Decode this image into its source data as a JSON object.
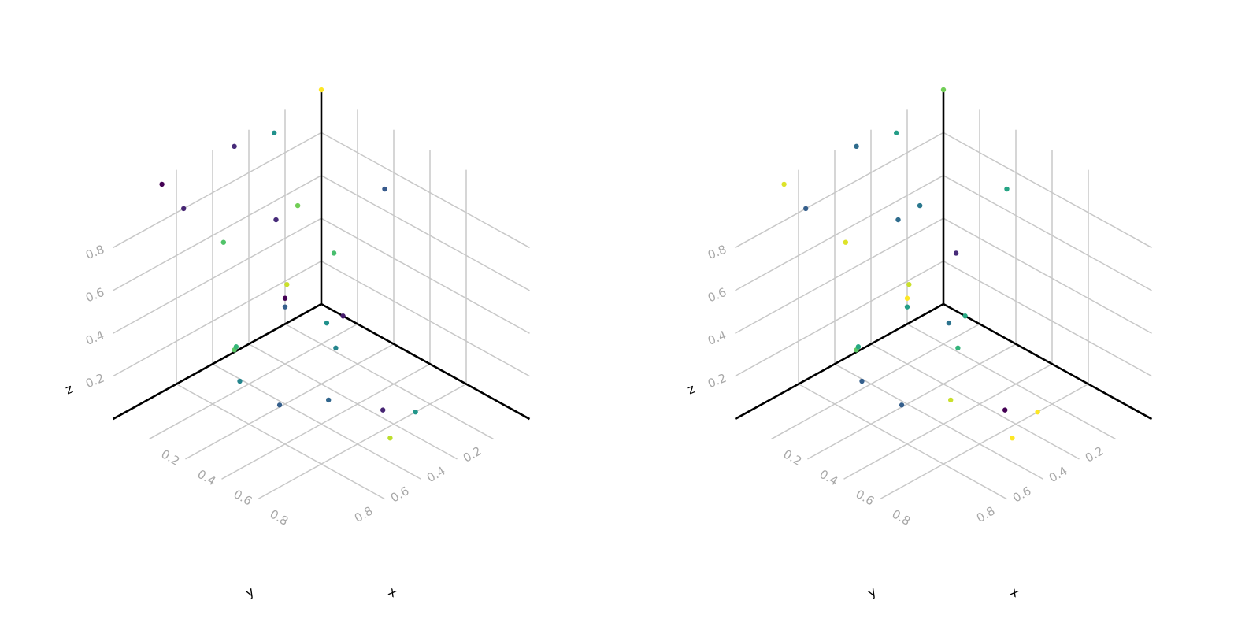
{
  "colormap": [
    "#440154",
    "#472d7b",
    "#3b528b",
    "#2c728e",
    "#21918c",
    "#28ae80",
    "#5ec962",
    "#addc30",
    "#fde725"
  ],
  "chart_data": [
    {
      "type": "scatter3d",
      "axes": {
        "x": {
          "label": "x",
          "ticks": [
            "0.2",
            "0.4",
            "0.6",
            "0.8"
          ],
          "range": [
            0,
            1
          ]
        },
        "y": {
          "label": "y",
          "ticks": [
            "0.2",
            "0.4",
            "0.6",
            "0.8"
          ],
          "range": [
            0,
            1
          ]
        },
        "z": {
          "label": "z",
          "ticks": [
            "0.2",
            "0.4",
            "0.6",
            "0.8"
          ],
          "range": [
            0,
            1
          ]
        }
      },
      "grid": true,
      "points": [
        {
          "x": 0.0,
          "y": 0.0,
          "z": 1.0,
          "c": 1.0
        },
        {
          "x": 0.0,
          "y": 0.26,
          "z": 0.92,
          "c": 0.5
        },
        {
          "x": 0.0,
          "y": 0.48,
          "z": 0.96,
          "c": 0.12
        },
        {
          "x": 0.0,
          "y": 0.88,
          "z": 0.97,
          "c": 0.0
        },
        {
          "x": 0.0,
          "y": 0.76,
          "z": 0.8,
          "c": 0.1
        },
        {
          "x": 0.0,
          "y": 0.54,
          "z": 0.54,
          "c": 0.72
        },
        {
          "x": 0.0,
          "y": 0.25,
          "z": 0.51,
          "c": 0.12
        },
        {
          "x": 0.0,
          "y": 0.13,
          "z": 0.52,
          "c": 0.78
        },
        {
          "x": 0.0,
          "y": 0.19,
          "z": 0.18,
          "c": 0.92
        },
        {
          "x": 0.0,
          "y": 0.2,
          "z": 0.12,
          "c": 0.0
        },
        {
          "x": 0.0,
          "y": 0.2,
          "z": 0.08,
          "c": 0.3
        },
        {
          "x": 0.0,
          "y": 0.48,
          "z": 0.01,
          "c": 0.74
        },
        {
          "x": 0.0,
          "y": 0.47,
          "z": 0.02,
          "c": 0.66
        },
        {
          "x": 0.0,
          "y": 0.45,
          "z": -0.15,
          "c": 0.45
        },
        {
          "x": 0.35,
          "y": 0.0,
          "z": 0.7,
          "c": 0.28
        },
        {
          "x": 0.07,
          "y": 0.0,
          "z": 0.27,
          "c": 0.7
        },
        {
          "x": 0.11,
          "y": 0.08,
          "z": 0.0,
          "c": 0.5
        },
        {
          "x": 0.12,
          "y": 0.0,
          "z": 0.0,
          "c": 0.08
        },
        {
          "x": 0.26,
          "y": 0.18,
          "z": 0.0,
          "c": 0.45
        },
        {
          "x": 0.5,
          "y": 0.46,
          "z": 0.0,
          "c": 0.33
        },
        {
          "x": 0.39,
          "y": 0.62,
          "z": 0.0,
          "c": 0.3
        },
        {
          "x": 0.7,
          "y": 0.36,
          "z": 0.0,
          "c": 0.1
        },
        {
          "x": 0.8,
          "y": 0.28,
          "z": 0.0,
          "c": 0.52
        },
        {
          "x": 0.86,
          "y": 0.48,
          "z": 0.0,
          "c": 0.9
        }
      ]
    },
    {
      "type": "scatter3d",
      "axes": {
        "x": {
          "label": "x",
          "ticks": [
            "0.2",
            "0.4",
            "0.6",
            "0.8"
          ],
          "range": [
            0,
            1
          ]
        },
        "y": {
          "label": "y",
          "ticks": [
            "0.2",
            "0.4",
            "0.6",
            "0.8"
          ],
          "range": [
            0,
            1
          ]
        },
        "z": {
          "label": "z",
          "ticks": [
            "0.2",
            "0.4",
            "0.6",
            "0.8"
          ],
          "range": [
            0,
            1
          ]
        }
      },
      "grid": true,
      "points": [
        {
          "x": 0.0,
          "y": 0.0,
          "z": 1.0,
          "c": 0.78
        },
        {
          "x": 0.0,
          "y": 0.26,
          "z": 0.92,
          "c": 0.55
        },
        {
          "x": 0.0,
          "y": 0.48,
          "z": 0.96,
          "c": 0.35
        },
        {
          "x": 0.0,
          "y": 0.88,
          "z": 0.97,
          "c": 0.95
        },
        {
          "x": 0.0,
          "y": 0.76,
          "z": 0.8,
          "c": 0.3
        },
        {
          "x": 0.0,
          "y": 0.54,
          "z": 0.54,
          "c": 0.95
        },
        {
          "x": 0.0,
          "y": 0.25,
          "z": 0.51,
          "c": 0.35
        },
        {
          "x": 0.0,
          "y": 0.13,
          "z": 0.52,
          "c": 0.4
        },
        {
          "x": 0.0,
          "y": 0.19,
          "z": 0.18,
          "c": 0.92
        },
        {
          "x": 0.0,
          "y": 0.2,
          "z": 0.12,
          "c": 1.0
        },
        {
          "x": 0.0,
          "y": 0.2,
          "z": 0.08,
          "c": 0.55
        },
        {
          "x": 0.0,
          "y": 0.48,
          "z": 0.01,
          "c": 0.74
        },
        {
          "x": 0.0,
          "y": 0.47,
          "z": 0.02,
          "c": 0.6
        },
        {
          "x": 0.0,
          "y": 0.45,
          "z": -0.15,
          "c": 0.3
        },
        {
          "x": 0.35,
          "y": 0.0,
          "z": 0.7,
          "c": 0.58
        },
        {
          "x": 0.07,
          "y": 0.0,
          "z": 0.27,
          "c": 0.12
        },
        {
          "x": 0.11,
          "y": 0.08,
          "z": 0.0,
          "c": 0.38
        },
        {
          "x": 0.12,
          "y": 0.0,
          "z": 0.0,
          "c": 0.6
        },
        {
          "x": 0.26,
          "y": 0.18,
          "z": 0.0,
          "c": 0.65
        },
        {
          "x": 0.5,
          "y": 0.46,
          "z": 0.0,
          "c": 0.92
        },
        {
          "x": 0.39,
          "y": 0.62,
          "z": 0.0,
          "c": 0.3
        },
        {
          "x": 0.7,
          "y": 0.36,
          "z": 0.0,
          "c": 0.0
        },
        {
          "x": 0.8,
          "y": 0.28,
          "z": 0.0,
          "c": 1.0
        },
        {
          "x": 0.86,
          "y": 0.48,
          "z": 0.0,
          "c": 1.0
        }
      ]
    }
  ]
}
